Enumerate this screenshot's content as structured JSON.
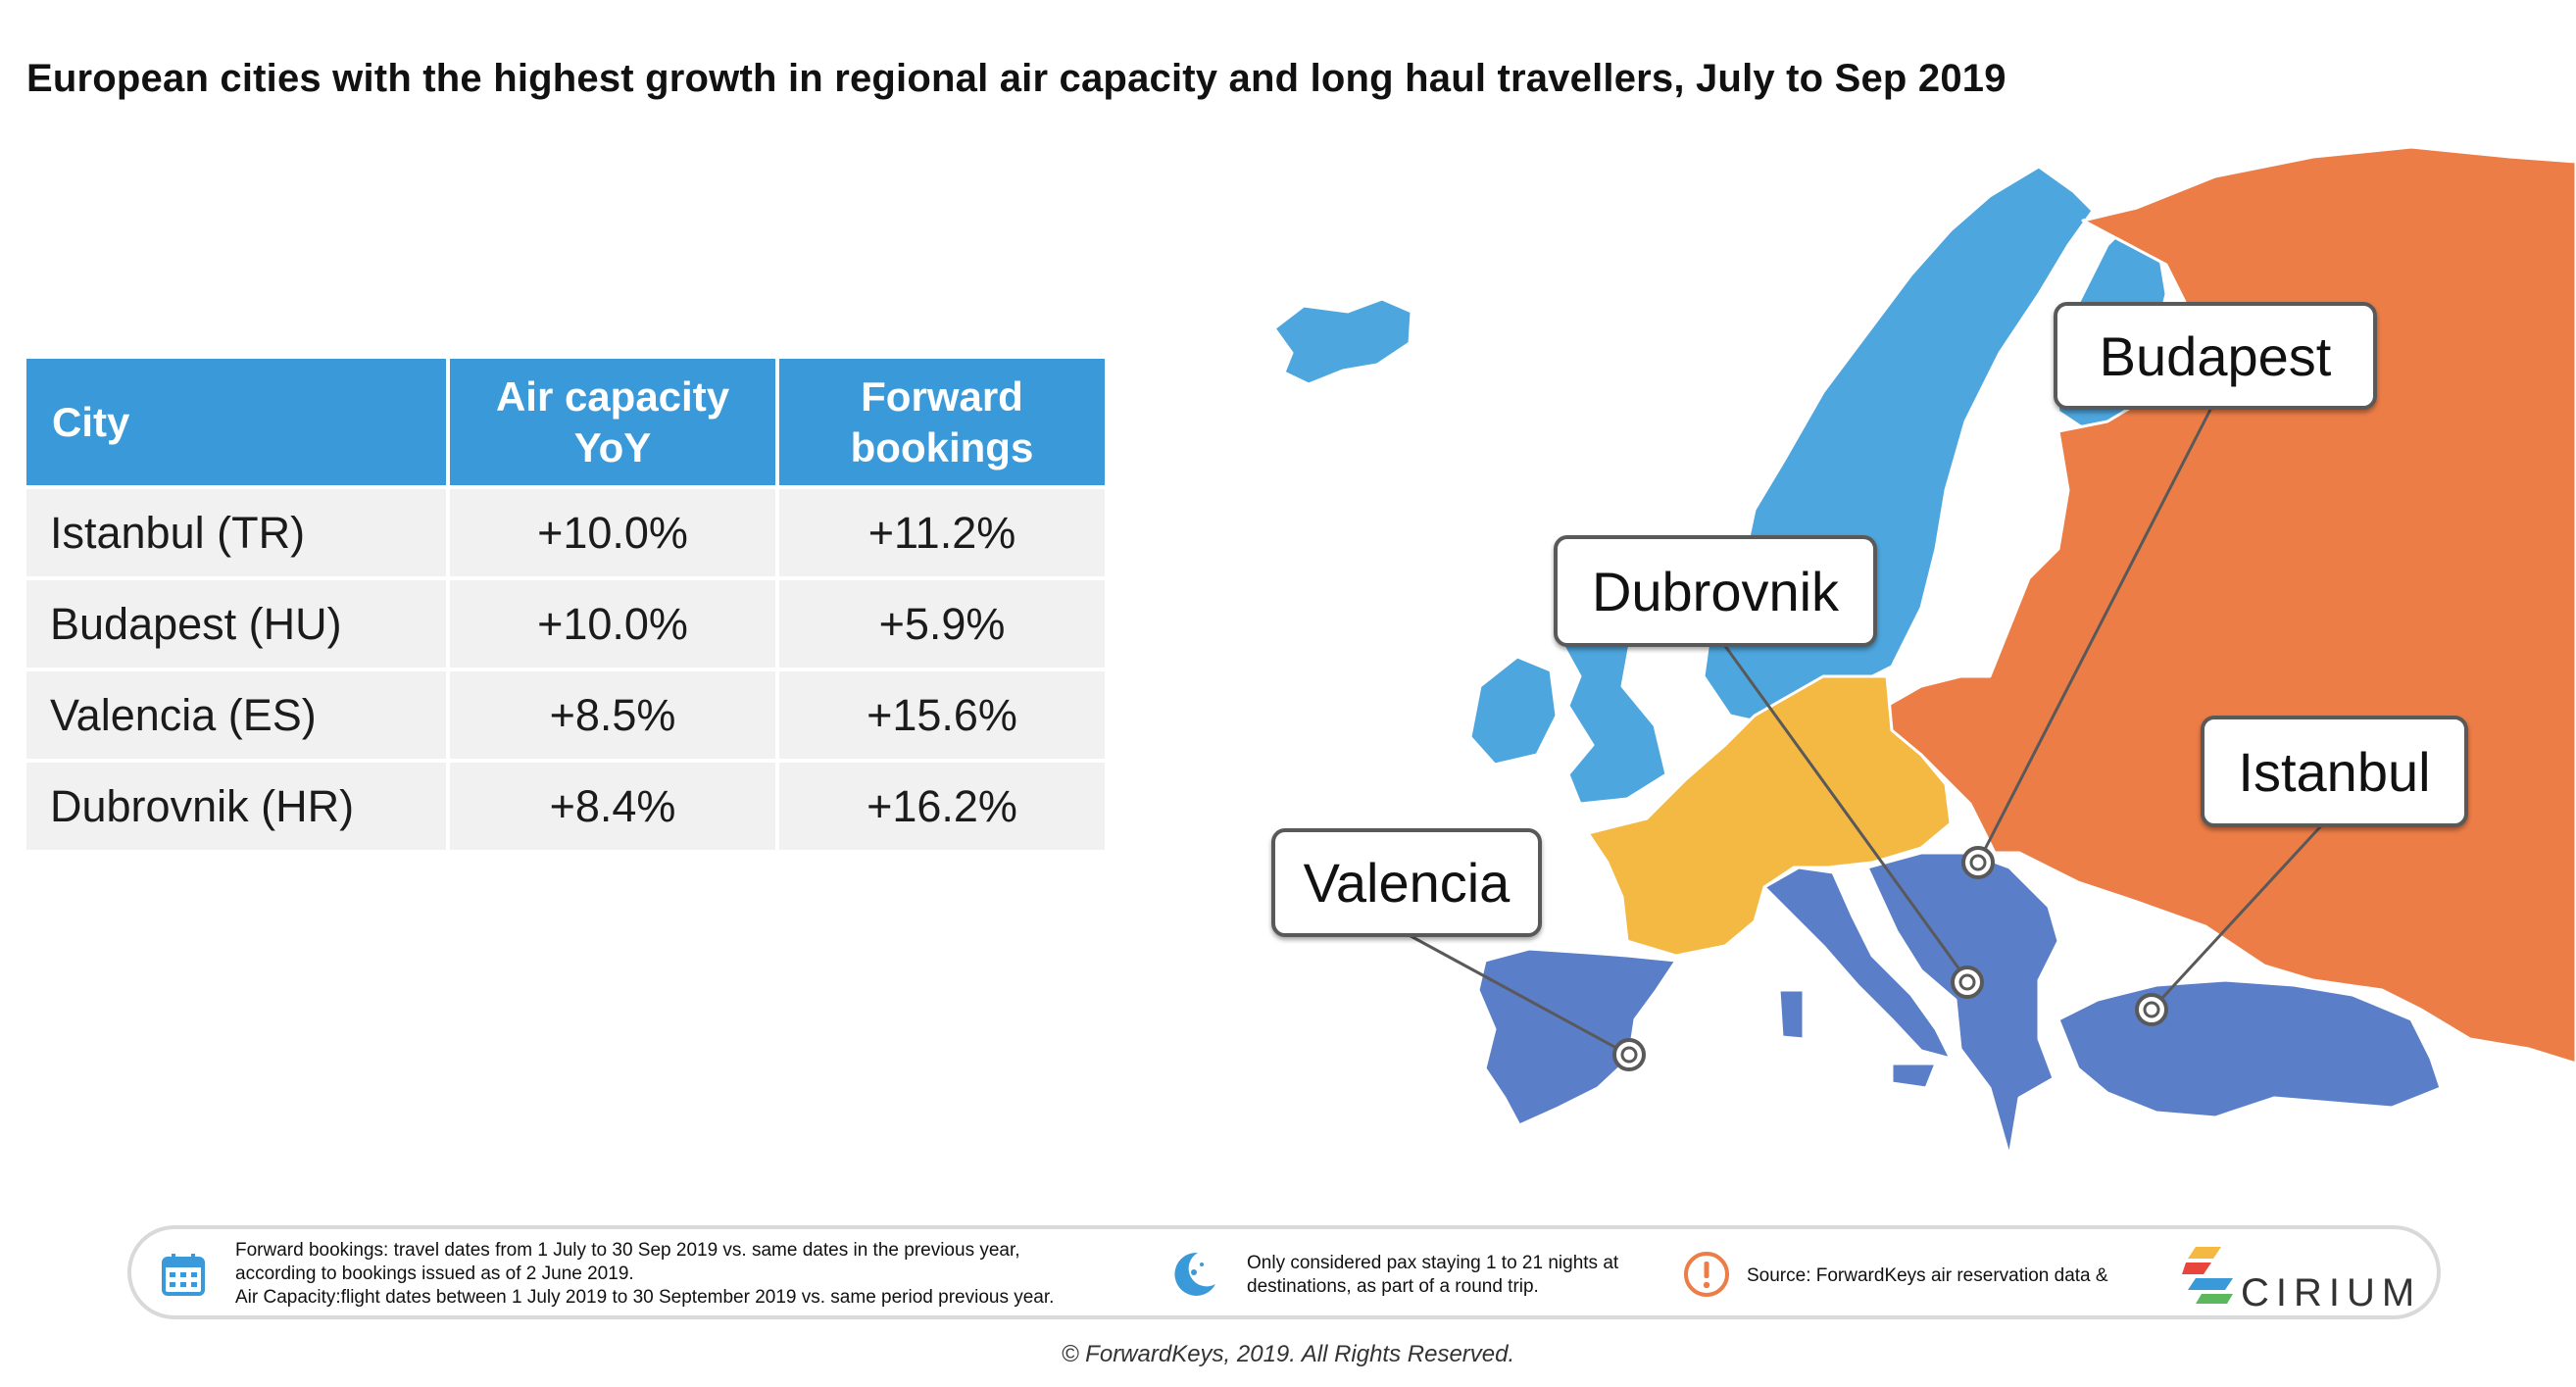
{
  "title": "European cities with the highest growth in regional air capacity and long haul travellers, July to Sep 2019",
  "table": {
    "headers": {
      "city": "City",
      "air_capacity_line1": "Air capacity",
      "air_capacity_line2": "YoY",
      "forward_line1": "Forward",
      "forward_line2": "bookings"
    },
    "rows": [
      {
        "city": "Istanbul (TR)",
        "air_capacity": "+10.0%",
        "forward_bookings": "+11.2%"
      },
      {
        "city": "Budapest (HU)",
        "air_capacity": "+10.0%",
        "forward_bookings": "+5.9%"
      },
      {
        "city": "Valencia (ES)",
        "air_capacity": "+8.5%",
        "forward_bookings": "+15.6%"
      },
      {
        "city": "Dubrovnik (HR)",
        "air_capacity": "+8.4%",
        "forward_bookings": "+16.2%"
      }
    ]
  },
  "map": {
    "callouts": {
      "budapest": "Budapest",
      "dubrovnik": "Dubrovnik",
      "istanbul": "Istanbul",
      "valencia": "Valencia"
    },
    "colors": {
      "north": "#4ea6de",
      "central_west": "#f4b942",
      "east": "#ec7d47",
      "south": "#5b7ec9"
    }
  },
  "footer": {
    "bookings_note_line1": "Forward bookings: travel dates from 1 July to 30 Sep 2019 vs. same dates in the previous year,",
    "bookings_note_line2": "according to bookings issued as of 2 June 2019.",
    "bookings_note_line3": "Air Capacity:flight dates between 1 July 2019 to 30 September 2019 vs. same period previous year.",
    "stay_note_line1": "Only considered pax staying 1 to 21 nights at",
    "stay_note_line2": "destinations, as part of a round trip.",
    "source_note": "Source: ForwardKeys air reservation data &",
    "partner_logo": "CIRIUM",
    "icons": [
      "calendar-icon",
      "moon-icon",
      "exclamation-icon"
    ]
  },
  "copyright": "© ForwardKeys, 2019. All Rights Reserved."
}
